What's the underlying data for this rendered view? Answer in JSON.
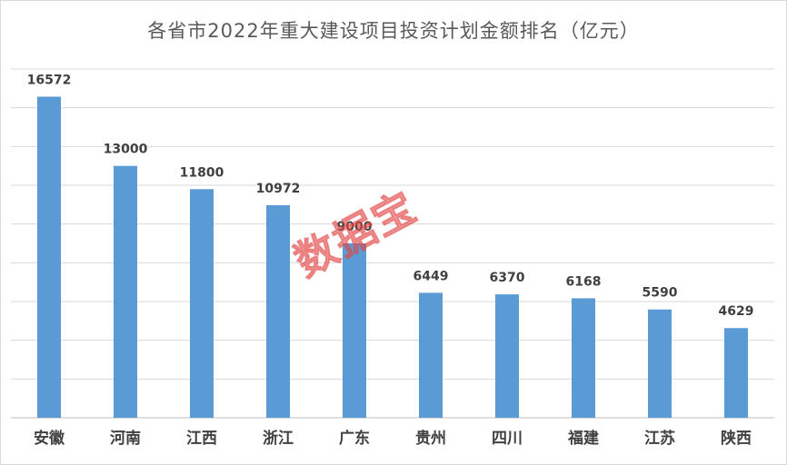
{
  "chart_data": {
    "type": "bar",
    "title": "各省市2022年重大建设项目投资计划金额排名（亿元）",
    "categories": [
      "安徽",
      "河南",
      "江西",
      "浙江",
      "广东",
      "贵州",
      "四川",
      "福建",
      "江苏",
      "陕西"
    ],
    "values": [
      16572,
      13000,
      11800,
      10972,
      9000,
      6449,
      6370,
      6168,
      5590,
      4629
    ],
    "data_labels": [
      "16572",
      "13000",
      "11800",
      "10972",
      "9000",
      "6449",
      "6370",
      "6168",
      "5590",
      "4629"
    ],
    "ylim": [
      0,
      18000
    ],
    "y_gridline_step": 2000,
    "grid": true,
    "bar_color": "#5b9bd5",
    "grid_color": "#d9d9d9",
    "xlabel": "",
    "ylabel": ""
  },
  "watermark": "数据宝"
}
